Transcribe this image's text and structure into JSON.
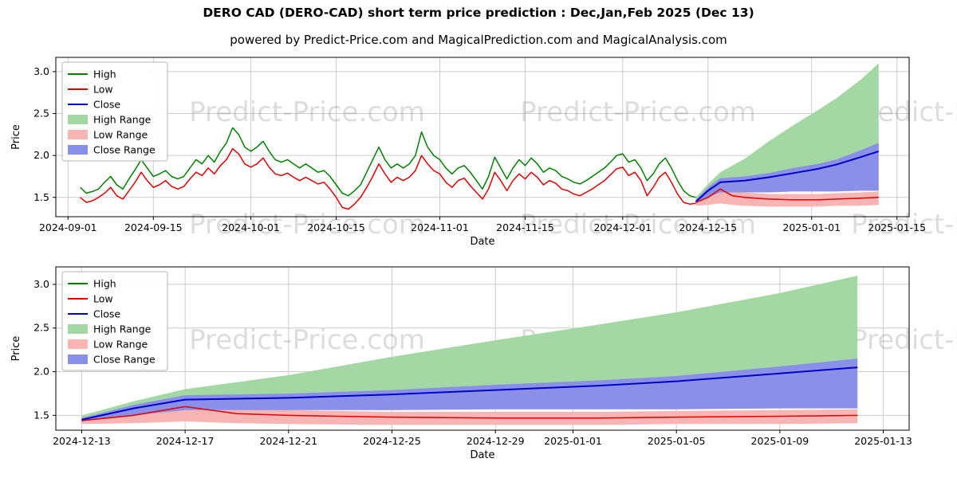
{
  "page": {
    "title": "DERO CAD (DERO-CAD) short term price prediction : Dec,Jan,Feb 2025 (Dec 13)",
    "subtitle": "powered by Predict-Price.com and MagicalPrediction.com and MagicalAnalysis.com",
    "watermark_text": "Predict-Price.com"
  },
  "colors": {
    "high": "#008000",
    "low": "#e00000",
    "close": "#0000cd",
    "high_range": "#a3d7a3",
    "low_range": "#f9b4b4",
    "close_range": "#8a8fe8",
    "grid": "#cccccc",
    "frame": "#000000",
    "text": "#000000",
    "watermark": "rgba(120,120,120,0.25)",
    "legend_border": "#b5b5b5"
  },
  "legend": {
    "items": [
      {
        "label": "High",
        "swatch": "line",
        "color_key": "high"
      },
      {
        "label": "Low",
        "swatch": "line",
        "color_key": "low"
      },
      {
        "label": "Close",
        "swatch": "line",
        "color_key": "close"
      },
      {
        "label": "High Range",
        "swatch": "patch",
        "color_key": "high_range"
      },
      {
        "label": "Low Range",
        "swatch": "patch",
        "color_key": "low_range"
      },
      {
        "label": "Close Range",
        "swatch": "patch",
        "color_key": "close_range"
      }
    ]
  },
  "chart_data": [
    {
      "type": "line",
      "name": "history-and-forecast",
      "xlabel": "Date",
      "ylabel": "Price",
      "xlim": [
        "2024-08-30",
        "2025-01-17"
      ],
      "ylim": [
        1.27,
        3.17
      ],
      "grid": true,
      "legend_position": "upper-left",
      "yticks": [
        1.5,
        2.0,
        2.5,
        3.0
      ],
      "xticks": [
        "2024-09-01",
        "2024-09-15",
        "2024-10-01",
        "2024-10-15",
        "2024-11-01",
        "2024-11-15",
        "2024-12-01",
        "2024-12-15",
        "2025-01-01",
        "2025-01-15"
      ],
      "history": {
        "start_date": "2024-09-03",
        "high": [
          1.62,
          1.55,
          1.57,
          1.6,
          1.68,
          1.75,
          1.65,
          1.6,
          1.72,
          1.83,
          1.95,
          1.85,
          1.75,
          1.78,
          1.82,
          1.75,
          1.72,
          1.75,
          1.85,
          1.95,
          1.9,
          2.0,
          1.92,
          2.05,
          2.15,
          2.33,
          2.25,
          2.1,
          2.05,
          2.1,
          2.17,
          2.05,
          1.95,
          1.92,
          1.95,
          1.9,
          1.85,
          1.9,
          1.85,
          1.8,
          1.82,
          1.75,
          1.65,
          1.55,
          1.52,
          1.58,
          1.65,
          1.8,
          1.95,
          2.1,
          1.95,
          1.85,
          1.9,
          1.85,
          1.9,
          2.0,
          2.28,
          2.1,
          2.0,
          1.95,
          1.85,
          1.78,
          1.85,
          1.88,
          1.8,
          1.7,
          1.6,
          1.75,
          1.98,
          1.85,
          1.72,
          1.85,
          1.95,
          1.88,
          1.97,
          1.9,
          1.8,
          1.85,
          1.82,
          1.75,
          1.72,
          1.68,
          1.66,
          1.7,
          1.75,
          1.8,
          1.85,
          1.92,
          2.0,
          2.02,
          1.92,
          1.95,
          1.85,
          1.7,
          1.78,
          1.9,
          1.97,
          1.85,
          1.7,
          1.58,
          1.52,
          1.5
        ],
        "low": [
          1.5,
          1.44,
          1.46,
          1.5,
          1.55,
          1.62,
          1.52,
          1.48,
          1.58,
          1.68,
          1.8,
          1.7,
          1.62,
          1.65,
          1.7,
          1.63,
          1.6,
          1.63,
          1.72,
          1.8,
          1.76,
          1.85,
          1.78,
          1.88,
          1.95,
          2.08,
          2.02,
          1.9,
          1.86,
          1.9,
          1.97,
          1.86,
          1.78,
          1.76,
          1.79,
          1.74,
          1.7,
          1.74,
          1.7,
          1.66,
          1.68,
          1.6,
          1.5,
          1.38,
          1.36,
          1.42,
          1.5,
          1.62,
          1.75,
          1.9,
          1.78,
          1.68,
          1.74,
          1.7,
          1.74,
          1.82,
          2.0,
          1.9,
          1.82,
          1.78,
          1.68,
          1.62,
          1.7,
          1.73,
          1.64,
          1.56,
          1.48,
          1.6,
          1.8,
          1.7,
          1.58,
          1.7,
          1.78,
          1.72,
          1.8,
          1.74,
          1.65,
          1.7,
          1.67,
          1.6,
          1.58,
          1.54,
          1.52,
          1.56,
          1.6,
          1.65,
          1.7,
          1.77,
          1.84,
          1.86,
          1.76,
          1.8,
          1.7,
          1.52,
          1.62,
          1.74,
          1.8,
          1.68,
          1.54,
          1.44,
          1.42,
          1.43
        ]
      },
      "forecast": {
        "dates": [
          "2024-12-13",
          "2024-12-15",
          "2024-12-17",
          "2024-12-19",
          "2024-12-21",
          "2024-12-25",
          "2024-12-29",
          "2025-01-02",
          "2025-01-05",
          "2025-01-09",
          "2025-01-12"
        ],
        "close": [
          1.45,
          1.58,
          1.68,
          1.69,
          1.7,
          1.74,
          1.79,
          1.84,
          1.89,
          1.98,
          2.05
        ],
        "low": [
          1.44,
          1.5,
          1.6,
          1.52,
          1.5,
          1.48,
          1.47,
          1.47,
          1.48,
          1.49,
          1.5
        ],
        "high_range": {
          "upper": [
            1.5,
            1.66,
            1.8,
            1.88,
            1.96,
            2.17,
            2.36,
            2.54,
            2.68,
            2.9,
            3.1
          ],
          "lower": [
            1.46,
            1.58,
            1.7,
            1.71,
            1.72,
            1.76,
            1.81,
            1.86,
            1.91,
            2.0,
            2.08
          ]
        },
        "close_range": {
          "upper": [
            1.47,
            1.62,
            1.73,
            1.74,
            1.75,
            1.79,
            1.85,
            1.9,
            1.95,
            2.06,
            2.15
          ],
          "lower": [
            1.43,
            1.5,
            1.56,
            1.56,
            1.56,
            1.56,
            1.57,
            1.57,
            1.57,
            1.58,
            1.58
          ]
        },
        "low_range": {
          "upper": [
            1.47,
            1.56,
            1.63,
            1.59,
            1.56,
            1.54,
            1.54,
            1.54,
            1.55,
            1.56,
            1.57
          ],
          "lower": [
            1.4,
            1.41,
            1.43,
            1.41,
            1.4,
            1.39,
            1.39,
            1.39,
            1.4,
            1.4,
            1.41
          ]
        }
      }
    },
    {
      "type": "line",
      "name": "forecast-zoom",
      "xlabel": "Date",
      "ylabel": "Price",
      "xlim": [
        "2024-12-12",
        "2025-01-14"
      ],
      "ylim": [
        1.33,
        3.2
      ],
      "grid": true,
      "legend_position": "upper-left",
      "yticks": [
        1.5,
        2.0,
        2.5,
        3.0
      ],
      "xticks": [
        "2024-12-13",
        "2024-12-17",
        "2024-12-21",
        "2024-12-25",
        "2024-12-29",
        "2025-01-01",
        "2025-01-05",
        "2025-01-09",
        "2025-01-13"
      ],
      "forecast": {
        "dates": [
          "2024-12-13",
          "2024-12-15",
          "2024-12-17",
          "2024-12-19",
          "2024-12-21",
          "2024-12-25",
          "2024-12-29",
          "2025-01-02",
          "2025-01-05",
          "2025-01-09",
          "2025-01-12"
        ],
        "close": [
          1.45,
          1.58,
          1.68,
          1.69,
          1.7,
          1.74,
          1.79,
          1.84,
          1.89,
          1.98,
          2.05
        ],
        "low": [
          1.44,
          1.5,
          1.6,
          1.52,
          1.5,
          1.48,
          1.47,
          1.47,
          1.48,
          1.49,
          1.5
        ],
        "high_range": {
          "upper": [
            1.5,
            1.66,
            1.8,
            1.88,
            1.96,
            2.17,
            2.36,
            2.54,
            2.68,
            2.9,
            3.1
          ],
          "lower": [
            1.46,
            1.58,
            1.7,
            1.71,
            1.72,
            1.76,
            1.81,
            1.86,
            1.91,
            2.0,
            2.08
          ]
        },
        "close_range": {
          "upper": [
            1.47,
            1.62,
            1.73,
            1.74,
            1.75,
            1.79,
            1.85,
            1.9,
            1.95,
            2.06,
            2.15
          ],
          "lower": [
            1.43,
            1.5,
            1.56,
            1.56,
            1.56,
            1.56,
            1.57,
            1.57,
            1.57,
            1.58,
            1.58
          ]
        },
        "low_range": {
          "upper": [
            1.47,
            1.56,
            1.63,
            1.59,
            1.56,
            1.54,
            1.54,
            1.54,
            1.55,
            1.56,
            1.57
          ],
          "lower": [
            1.4,
            1.41,
            1.43,
            1.41,
            1.4,
            1.39,
            1.39,
            1.39,
            1.4,
            1.4,
            1.41
          ]
        }
      }
    }
  ]
}
